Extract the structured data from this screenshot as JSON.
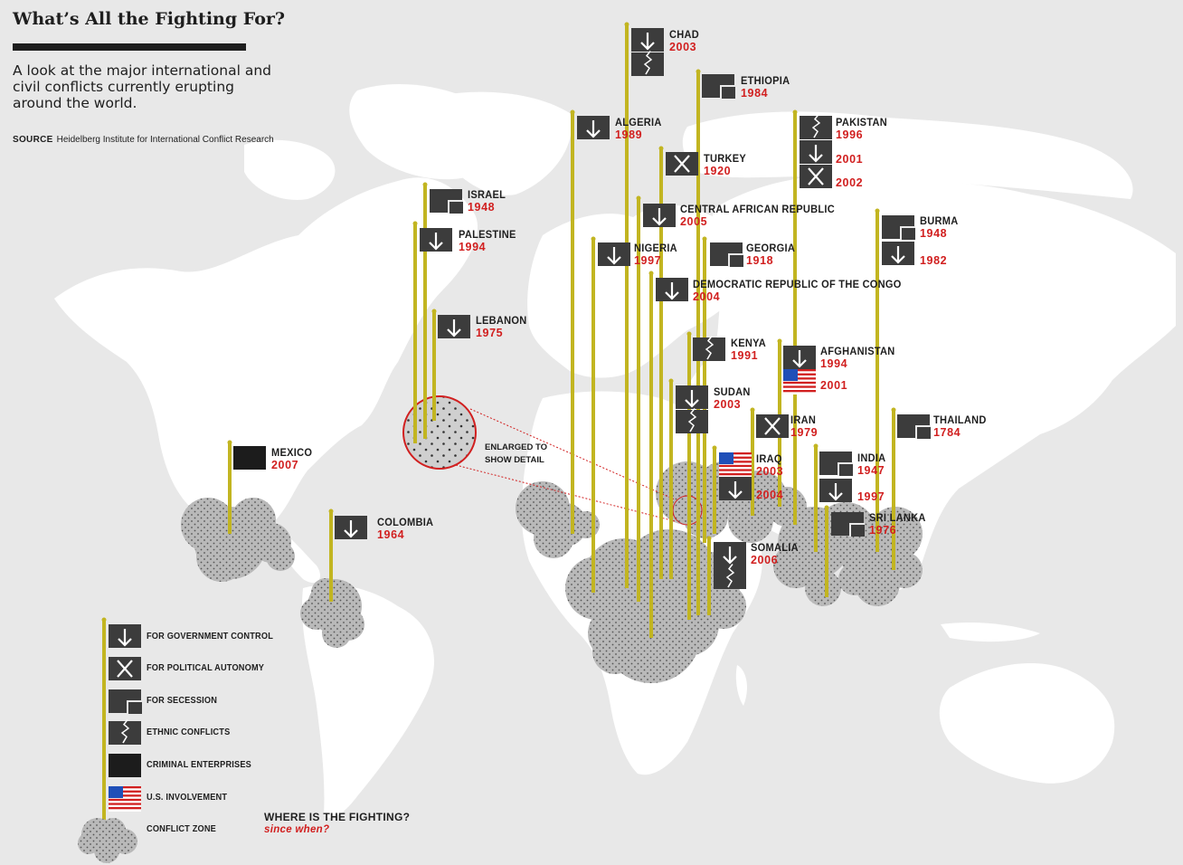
{
  "header": {
    "title": "What’s All the Fighting For?",
    "subtitle": "A look at the major international and civil conflicts currently erupting around the world.",
    "source_label": "SOURCE",
    "source_text": "Heidelberg Institute for International Conflict Research"
  },
  "colors": {
    "background": "#e8e8e8",
    "land": "#ffffff",
    "pole": "#c2b521",
    "flag": "#3c3c3c",
    "criminal_flag": "#1c1c1c",
    "year_red": "#d11f1f",
    "conflict_zone": "#b9b9b9"
  },
  "legend": {
    "items": [
      {
        "key": "government",
        "label": "FOR GOVERNMENT CONTROL",
        "icon": "down-arrow-icon"
      },
      {
        "key": "autonomy",
        "label": "FOR POLITICAL AUTONOMY",
        "icon": "x-mark-icon"
      },
      {
        "key": "secession",
        "label": "FOR SECESSION",
        "icon": "secession-icon"
      },
      {
        "key": "ethnic",
        "label": "ETHNIC CONFLICTS",
        "icon": "crack-icon"
      },
      {
        "key": "criminal",
        "label": "CRIMINAL ENTERPRISES",
        "icon": "solid-flag-icon"
      },
      {
        "key": "us",
        "label": "U.S. INVOLVEMENT",
        "icon": "us-flag-icon"
      },
      {
        "key": "zone",
        "label": "CONFLICT ZONE",
        "icon": "conflict-zone-icon"
      }
    ],
    "where_title": "WHERE IS THE FIGHTING?",
    "where_sub": "since when?"
  },
  "enlarged_note": "ENLARGED TO SHOW DETAIL",
  "conflicts": [
    {
      "country": "CHAD",
      "years": [
        "2003"
      ],
      "types": [
        "government",
        "ethnic"
      ]
    },
    {
      "country": "ETHIOPIA",
      "years": [
        "1984"
      ],
      "types": [
        "secession"
      ]
    },
    {
      "country": "ALGERIA",
      "years": [
        "1989"
      ],
      "types": [
        "government"
      ]
    },
    {
      "country": "PAKISTAN",
      "years": [
        "1996",
        "2001",
        "2002"
      ],
      "types": [
        "ethnic",
        "government",
        "autonomy"
      ]
    },
    {
      "country": "TURKEY",
      "years": [
        "1920"
      ],
      "types": [
        "autonomy"
      ]
    },
    {
      "country": "ISRAEL",
      "years": [
        "1948"
      ],
      "types": [
        "secession"
      ]
    },
    {
      "country": "CENTRAL AFRICAN REPUBLIC",
      "years": [
        "2005"
      ],
      "types": [
        "government"
      ]
    },
    {
      "country": "PALESTINE",
      "years": [
        "1994"
      ],
      "types": [
        "government"
      ]
    },
    {
      "country": "BURMA",
      "years": [
        "1948",
        "1982"
      ],
      "types": [
        "secession",
        "government"
      ]
    },
    {
      "country": "NIGERIA",
      "years": [
        "1997"
      ],
      "types": [
        "government"
      ]
    },
    {
      "country": "GEORGIA",
      "years": [
        "1918"
      ],
      "types": [
        "secession"
      ]
    },
    {
      "country": "DEMOCRATIC REPUBLIC OF THE CONGO",
      "years": [
        "2004"
      ],
      "types": [
        "government"
      ]
    },
    {
      "country": "LEBANON",
      "years": [
        "1975"
      ],
      "types": [
        "government"
      ]
    },
    {
      "country": "KENYA",
      "years": [
        "1991"
      ],
      "types": [
        "ethnic"
      ]
    },
    {
      "country": "AFGHANISTAN",
      "years": [
        "1994",
        "2001"
      ],
      "types": [
        "government",
        "us"
      ]
    },
    {
      "country": "SUDAN",
      "years": [
        "2003"
      ],
      "types": [
        "government",
        "ethnic"
      ]
    },
    {
      "country": "IRAN",
      "years": [
        "1979"
      ],
      "types": [
        "autonomy"
      ]
    },
    {
      "country": "THAILAND",
      "years": [
        "1784"
      ],
      "types": [
        "secession"
      ]
    },
    {
      "country": "MEXICO",
      "years": [
        "2007"
      ],
      "types": [
        "criminal"
      ]
    },
    {
      "country": "IRAQ",
      "years": [
        "2003",
        "2004"
      ],
      "types": [
        "us",
        "government"
      ]
    },
    {
      "country": "INDIA",
      "years": [
        "1947",
        "1997"
      ],
      "types": [
        "secession",
        "government"
      ]
    },
    {
      "country": "SRI LANKA",
      "years": [
        "1976"
      ],
      "types": [
        "secession"
      ]
    },
    {
      "country": "COLOMBIA",
      "years": [
        "1964"
      ],
      "types": [
        "government"
      ]
    },
    {
      "country": "SOMALIA",
      "years": [
        "2006"
      ],
      "types": [
        "government",
        "ethnic"
      ]
    }
  ]
}
